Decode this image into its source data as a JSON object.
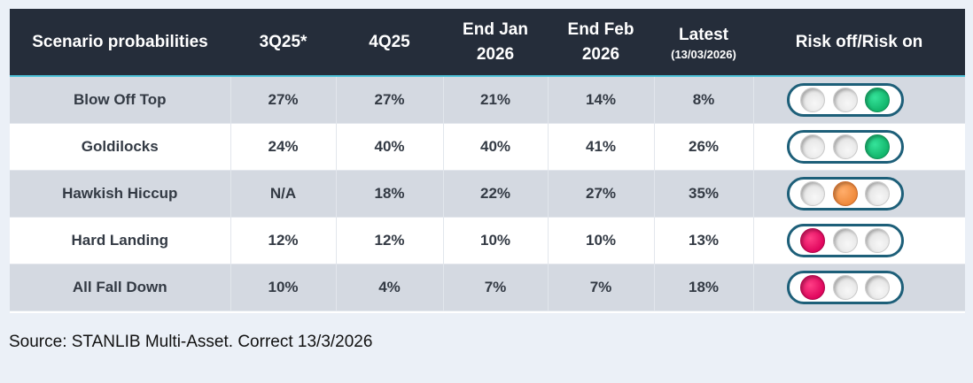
{
  "table": {
    "headers": {
      "scenario": "Scenario probabilities",
      "q3": "3Q25*",
      "q4": "4Q25",
      "jan_line1": "End Jan",
      "jan_line2": "2026",
      "feb_line1": "End Feb",
      "feb_line2": "2026",
      "latest": "Latest",
      "latest_sub": "(13/03/2026)",
      "risk": "Risk off/Risk on"
    },
    "rows": [
      {
        "scenario": "Blow Off Top",
        "q3": "27%",
        "q4": "27%",
        "jan": "21%",
        "feb": "14%",
        "latest": "8%",
        "light": "green"
      },
      {
        "scenario": "Goldilocks",
        "q3": "24%",
        "q4": "40%",
        "jan": "40%",
        "feb": "41%",
        "latest": "26%",
        "light": "green"
      },
      {
        "scenario": "Hawkish Hiccup",
        "q3": "N/A",
        "q4": "18%",
        "jan": "22%",
        "feb": "27%",
        "latest": "35%",
        "light": "amber"
      },
      {
        "scenario": "Hard Landing",
        "q3": "12%",
        "q4": "12%",
        "jan": "10%",
        "feb": "10%",
        "latest": "13%",
        "light": "red"
      },
      {
        "scenario": "All Fall Down",
        "q3": "10%",
        "q4": "4%",
        "jan": "7%",
        "feb": "7%",
        "latest": "18%",
        "light": "red"
      }
    ]
  },
  "colors": {
    "header_bg": "#252d3a",
    "header_rule": "#4fc3d9",
    "shaded_row": "#d4d9e1",
    "green": "#12b56b",
    "amber": "#ef8a3c",
    "red": "#e0065d",
    "light_frame": "#1d5f79"
  },
  "source": "Source: STANLIB Multi-Asset. Correct 13/3/2026"
}
